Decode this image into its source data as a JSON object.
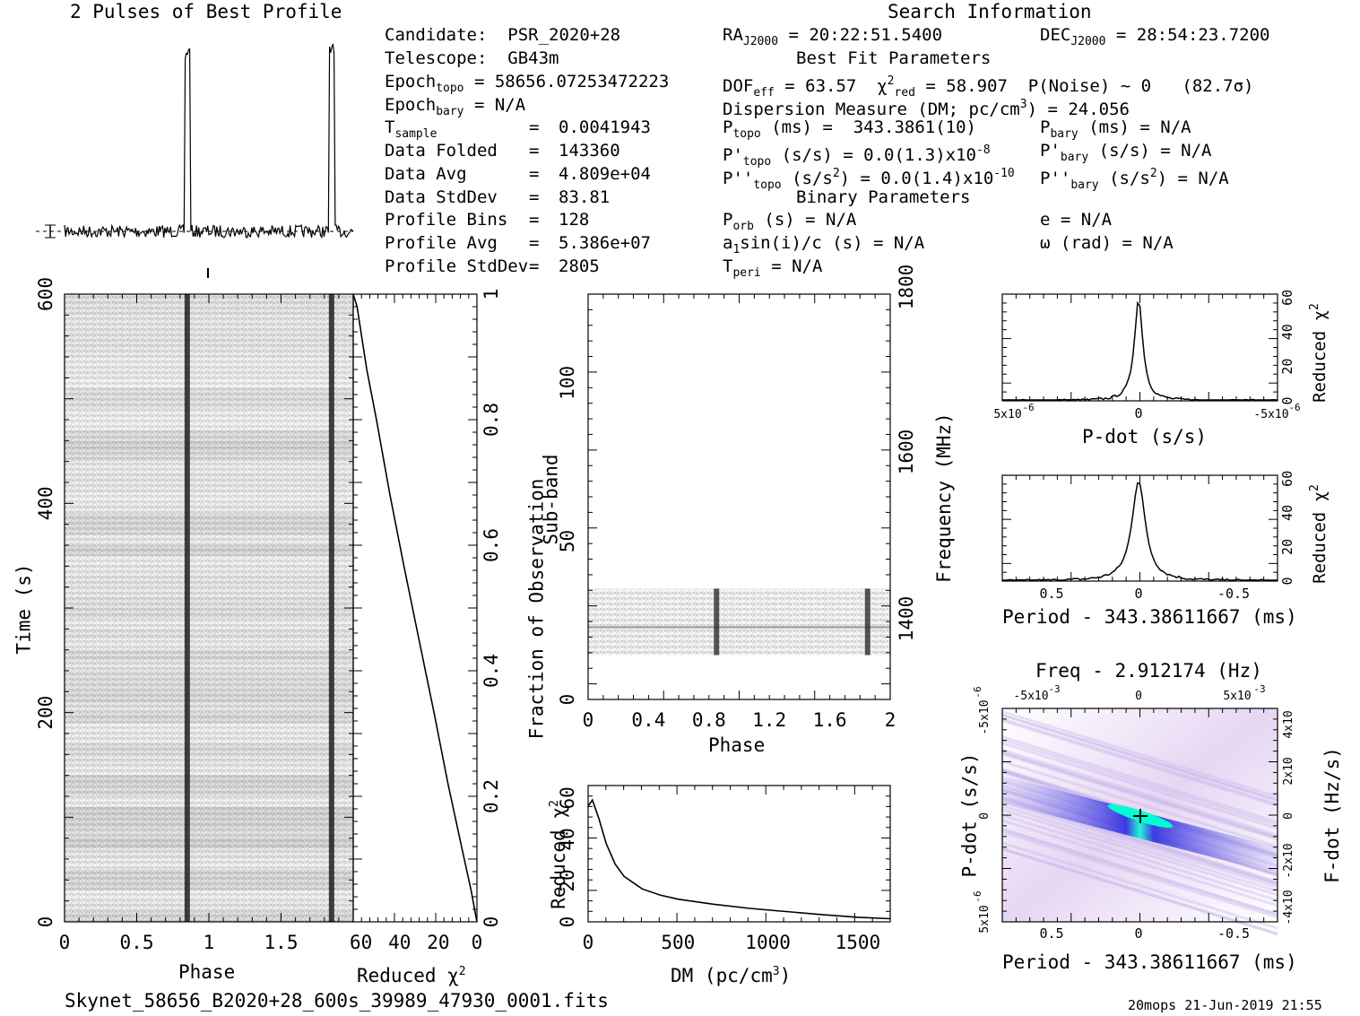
{
  "header": {
    "profile_title": "2 Pulses of Best Profile",
    "search_title": "Search Information"
  },
  "info": {
    "candidate": "Candidate:  PSR_2020+28",
    "telescope": "Telescope:  GB43m",
    "epoch_topo_label": "Epoch",
    "epoch_topo_sub": "topo",
    "epoch_topo_value": " = 58656.07253472223",
    "epoch_bary_label": "Epoch",
    "epoch_bary_sub": "bary",
    "epoch_bary_value": " = N/A",
    "t_sample_label": "T",
    "t_sample_sub": "sample",
    "t_sample_value": "0.0041943",
    "data_folded_label": "Data Folded",
    "data_folded_value": "143360",
    "data_avg_label": "Data Avg",
    "data_avg_value": "4.809e+04",
    "data_stddev_label": "Data StdDev",
    "data_stddev_value": "83.81",
    "profile_bins_label": "Profile Bins",
    "profile_bins_value": "128",
    "profile_avg_label": "Profile Avg",
    "profile_avg_value": "5.386e+07",
    "profile_stddev_label": "Profile StdDev",
    "profile_stddev_value": "2805",
    "equals": "="
  },
  "search": {
    "ra_label": "RA",
    "ra_sub": "J2000",
    "ra_value": " = 20:22:51.5400",
    "dec_label": "DEC",
    "dec_sub": "J2000",
    "dec_value": " = 28:54:23.7200",
    "best_fit_title": "Best Fit Parameters",
    "dof_label": "DOF",
    "dof_sub": "eff",
    "dof_value": " = 63.57  ",
    "chi_label": "χ",
    "chi_sup": "2",
    "chi_sub": "red",
    "chi_value": " = 58.907  P(Noise) ~ 0   (82.7σ)",
    "dm_line": "Dispersion Measure (DM; pc/cm",
    "dm_sup": "3",
    "dm_value": ") = 24.056",
    "ptopo_label": "P",
    "ptopo_sub": "topo",
    "ptopo_value": " (ms) =  343.3861(10)",
    "pbary_label": "P",
    "pbary_sub": "bary",
    "pbary_value": " (ms) = N/A",
    "pdtopo_label": "P'",
    "pdtopo_sub": "topo",
    "pdtopo_value": " (s/s) = 0.0(1.3)x10",
    "pdtopo_exp": "-8",
    "pdbary_label": "P'",
    "pdbary_sub": "bary",
    "pdbary_value": " (s/s) = N/A",
    "pddtopo_label": "P''",
    "pddtopo_sub": "topo",
    "pddtopo_value_a": " (s/s",
    "pddtopo_value_sup": "2",
    "pddtopo_value_b": ") = 0.0(1.4)x10",
    "pddtopo_exp": "-10",
    "pddbary_label": "P''",
    "pddbary_sub": "bary",
    "pddbary_value_a": " (s/s",
    "pddbary_value_sup": "2",
    "pddbary_value_b": ") = N/A",
    "binary_title": "Binary Parameters",
    "porb_label": "P",
    "porb_sub": "orb",
    "porb_value": " (s) = N/A",
    "e_line": "e = N/A",
    "a1_label": "a",
    "a1_sub": "1",
    "a1_value": "sin(i)/c (s) = N/A",
    "omega_line": "ω (rad) = N/A",
    "tperi_label": "T",
    "tperi_sub": "peri",
    "tperi_value": " = N/A"
  },
  "footer": {
    "filename": "Skynet_58656_B2020+28_600s_39989_47930_0001.fits",
    "stamp": "20mops 21-Jun-2019 21:55"
  },
  "colors": {
    "ink": "#000000",
    "greyscale_dark": "#202020",
    "ppdot_low": "#ffffff",
    "ppdot_mid": "#6a5acd",
    "ppdot_high": "#0000ff",
    "ppdot_peak": "#00ffd0"
  },
  "chart_data": [
    {
      "id": "profile",
      "type": "line",
      "title": "2 Pulses of Best Profile",
      "xlim": [
        0,
        2
      ],
      "pulse_phase": [
        0.85,
        1.85
      ],
      "notes": "two pulses of best profile with error bar marker at left"
    },
    {
      "id": "time_phase",
      "type": "heatmap",
      "xlabel": "Phase",
      "ylabel": "Time (s)",
      "xticks": [
        "0",
        "0.5",
        "1",
        "1.5"
      ],
      "yticks": [
        "0",
        "200",
        "400",
        "600"
      ],
      "xlim": [
        0,
        2
      ],
      "ylim": [
        0,
        600
      ],
      "pulse_phase": [
        0.85,
        1.85
      ]
    },
    {
      "id": "chi_vs_time",
      "type": "line",
      "xlabel": "Reduced χ",
      "xlabel_sup": "2",
      "ylabel": "Fraction of Observation",
      "xticks": [
        "60",
        "40",
        "20",
        "0"
      ],
      "yticks": [
        "0",
        "0.2",
        "0.4",
        "0.6",
        "0.8",
        "1"
      ],
      "xlim": [
        64,
        0
      ],
      "ylim": [
        0,
        1
      ],
      "x": [
        0,
        3,
        8,
        15,
        22,
        30,
        38,
        45,
        52,
        57,
        60,
        62,
        64
      ],
      "y": [
        0,
        0.05,
        0.12,
        0.22,
        0.33,
        0.45,
        0.57,
        0.68,
        0.8,
        0.88,
        0.94,
        0.98,
        1.0
      ]
    },
    {
      "id": "subband_phase",
      "type": "heatmap",
      "xlabel": "Phase",
      "ylabel": "Sub-band",
      "y2label": "Frequency (MHz)",
      "xticks": [
        "0",
        "0.4",
        "0.8",
        "1.2",
        "1.6",
        "2"
      ],
      "yticks": [
        "0",
        "50",
        "100"
      ],
      "y2ticks": [
        "1400",
        "1600",
        "1800"
      ],
      "xlim": [
        0,
        2
      ],
      "ylim": [
        0,
        128
      ],
      "active_subbands": [
        14,
        35
      ],
      "pulse_phase": [
        0.85,
        1.85
      ]
    },
    {
      "id": "chi_vs_dm",
      "type": "line",
      "xlabel": "DM (pc/cm",
      "xlabel_sup": "3",
      "xlabel_end": ")",
      "ylabel": "Reduced χ",
      "ylabel_sup": "2",
      "xticks": [
        "0",
        "500",
        "1000",
        "1500"
      ],
      "yticks": [
        "0",
        "20",
        "40",
        "60"
      ],
      "xlim": [
        0,
        1680
      ],
      "ylim": [
        0,
        66
      ],
      "x": [
        0,
        24,
        60,
        100,
        150,
        200,
        300,
        400,
        500,
        700,
        900,
        1100,
        1300,
        1500,
        1680
      ],
      "y": [
        56,
        59,
        50,
        38,
        28,
        22,
        16,
        13,
        11,
        8.5,
        6.5,
        5,
        3.5,
        2.2,
        1.5
      ]
    },
    {
      "id": "chi_vs_pdot",
      "type": "line",
      "xlabel": "P-dot (s/s)",
      "ylabel": "Reduced χ",
      "ylabel_sup": "2",
      "xticks_left": "5x10",
      "xticks_left_exp": "-6",
      "xticks_mid": "0",
      "xticks_right": "-5x10",
      "xticks_right_exp": "-6",
      "yticks": [
        "0",
        "20",
        "40",
        "60"
      ],
      "ylim": [
        0,
        62
      ],
      "peak": 58.9
    },
    {
      "id": "chi_vs_period",
      "type": "line",
      "xlabel": "Period - 343.38611667 (ms)",
      "ylabel": "Reduced χ",
      "ylabel_sup": "2",
      "xticks": [
        "0.5",
        "0",
        "-0.5"
      ],
      "yticks": [
        "0",
        "20",
        "40",
        "60"
      ],
      "ylim": [
        0,
        62
      ],
      "peak": 58.9
    },
    {
      "id": "p_pdot_plane",
      "type": "heatmap",
      "title": "Freq - 2.912174 (Hz)",
      "xlabel": "Period - 343.38611667 (ms)",
      "ylabel": "P-dot (s/s)",
      "y2label": "F-dot (Hz/s)",
      "xticks": [
        "0.5",
        "0",
        "-0.5"
      ],
      "top_ticks_left": "-5x10",
      "top_ticks_left_exp": "-3",
      "top_ticks_mid": "0",
      "top_ticks_right": "5x10",
      "top_ticks_right_exp": "-3",
      "yticks_top": "-5x10",
      "yticks_top_exp": "-6",
      "yticks_mid": "0",
      "yticks_bottom": "5x10",
      "yticks_bottom_exp": "-6",
      "y2ticks": [
        "4x10",
        "2x10",
        "0",
        "-2x10",
        "-4x10"
      ],
      "y2ticks_exp": "-6"
    }
  ]
}
